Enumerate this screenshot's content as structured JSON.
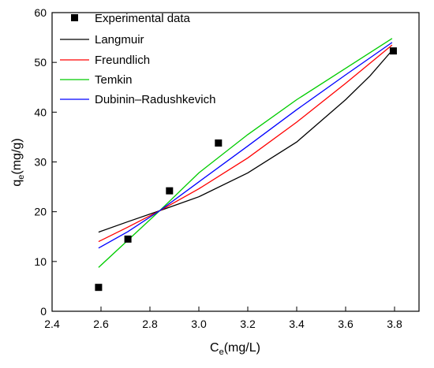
{
  "chart_data": {
    "type": "scatter",
    "xlabel": {
      "main": "C",
      "sub": "e",
      "rest": "(mg/L)"
    },
    "ylabel": {
      "main": "q",
      "sub": "e",
      "rest": "(mg/g)"
    },
    "xlim": [
      2.4,
      3.9
    ],
    "ylim": [
      0,
      60
    ],
    "xticks": [
      "2.4",
      "2.6",
      "2.8",
      "3.0",
      "3.2",
      "3.4",
      "3.6",
      "3.8"
    ],
    "yticks": [
      "0",
      "10",
      "20",
      "30",
      "40",
      "50",
      "60"
    ],
    "grid": false,
    "legend_position": "top-left",
    "experimental": {
      "name": "Experimental data",
      "color": "#000000",
      "x": [
        2.59,
        2.71,
        2.88,
        3.08,
        3.795
      ],
      "y": [
        4.8,
        14.5,
        24.2,
        33.8,
        52.3
      ]
    },
    "series": [
      {
        "name": "Langmuir",
        "color": "#000000",
        "x": [
          2.59,
          2.71,
          2.84,
          3.0,
          3.2,
          3.4,
          3.6,
          3.7,
          3.79
        ],
        "y": [
          15.9,
          18.0,
          20.2,
          23.0,
          27.8,
          34.0,
          42.5,
          47.3,
          52.4
        ]
      },
      {
        "name": "Freundlich",
        "color": "#ff0000",
        "x": [
          2.59,
          2.71,
          2.84,
          3.0,
          3.2,
          3.4,
          3.6,
          3.79
        ],
        "y": [
          14.0,
          16.9,
          20.2,
          24.6,
          30.8,
          38.0,
          45.8,
          53.5
        ]
      },
      {
        "name": "Temkin",
        "color": "#00cc00",
        "x": [
          2.59,
          2.84,
          3.0,
          3.2,
          3.4,
          3.6,
          3.79
        ],
        "y": [
          8.8,
          20.2,
          27.8,
          35.5,
          42.5,
          48.8,
          54.8
        ]
      },
      {
        "name": "Dubinin–Radushkevich",
        "color": "#0000ff",
        "x": [
          2.59,
          2.71,
          2.84,
          3.0,
          3.2,
          3.4,
          3.6,
          3.79
        ],
        "y": [
          12.7,
          16.0,
          20.2,
          26.0,
          33.2,
          40.5,
          47.5,
          54.0
        ]
      }
    ]
  }
}
